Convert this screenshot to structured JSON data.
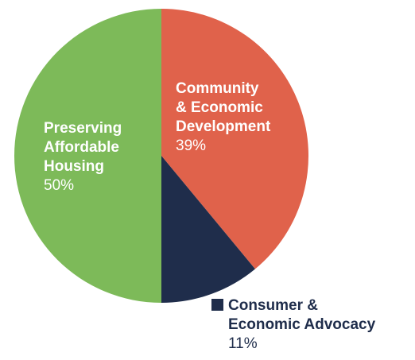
{
  "chart_data": {
    "type": "pie",
    "title": "",
    "slices": [
      {
        "name_lines": [
          "Community",
          "& Economic",
          "Development"
        ],
        "value": 39,
        "value_label": "39%",
        "color": "#e0624b",
        "label_color": "#ffffff"
      },
      {
        "name_lines": [
          "Consumer &",
          "Economic Advocacy"
        ],
        "value": 11,
        "value_label": "11%",
        "color": "#1f2d4b",
        "label_color": "#1f2d4b",
        "legend_marker": true
      },
      {
        "name_lines": [
          "Preserving",
          "Affordable",
          "Housing"
        ],
        "value": 50,
        "value_label": "50%",
        "color": "#7dba59",
        "label_color": "#ffffff"
      }
    ],
    "start_angle": "12 o'clock",
    "direction": "clockwise"
  }
}
